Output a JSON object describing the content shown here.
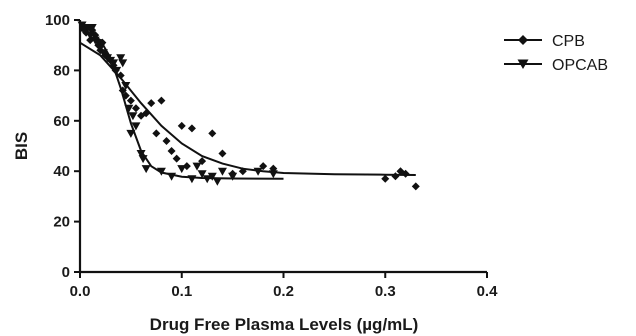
{
  "chart_data": {
    "type": "scatter",
    "xlabel": "Drug Free Plasma Levels (µg/mL)",
    "ylabel": "BIS",
    "xlim": [
      0.0,
      0.4
    ],
    "ylim": [
      0,
      100
    ],
    "x_ticks": [
      "0.0",
      "0.1",
      "0.2",
      "0.3",
      "0.4"
    ],
    "y_ticks": [
      "0",
      "20",
      "40",
      "60",
      "80",
      "100"
    ],
    "grid": false,
    "legend_position": "top-right",
    "series": [
      {
        "name": "CPB",
        "marker": "diamond",
        "color": "#111111",
        "points": [
          [
            0.003,
            97
          ],
          [
            0.006,
            95
          ],
          [
            0.01,
            92
          ],
          [
            0.012,
            96
          ],
          [
            0.015,
            94
          ],
          [
            0.018,
            90
          ],
          [
            0.02,
            88
          ],
          [
            0.022,
            91
          ],
          [
            0.025,
            86
          ],
          [
            0.03,
            84
          ],
          [
            0.033,
            82
          ],
          [
            0.035,
            80
          ],
          [
            0.04,
            78
          ],
          [
            0.042,
            72
          ],
          [
            0.045,
            70
          ],
          [
            0.05,
            68
          ],
          [
            0.055,
            65
          ],
          [
            0.06,
            62
          ],
          [
            0.065,
            63
          ],
          [
            0.07,
            67
          ],
          [
            0.075,
            55
          ],
          [
            0.08,
            68
          ],
          [
            0.085,
            52
          ],
          [
            0.09,
            48
          ],
          [
            0.095,
            45
          ],
          [
            0.1,
            58
          ],
          [
            0.105,
            42
          ],
          [
            0.11,
            57
          ],
          [
            0.12,
            44
          ],
          [
            0.13,
            55
          ],
          [
            0.14,
            47
          ],
          [
            0.15,
            39
          ],
          [
            0.16,
            40
          ],
          [
            0.18,
            42
          ],
          [
            0.19,
            41
          ],
          [
            0.3,
            37
          ],
          [
            0.31,
            38
          ],
          [
            0.315,
            40
          ],
          [
            0.32,
            39
          ],
          [
            0.33,
            34
          ]
        ],
        "fit": [
          [
            0.0,
            91
          ],
          [
            0.02,
            86
          ],
          [
            0.04,
            77
          ],
          [
            0.06,
            67
          ],
          [
            0.08,
            58
          ],
          [
            0.1,
            51
          ],
          [
            0.12,
            46
          ],
          [
            0.14,
            43
          ],
          [
            0.16,
            41
          ],
          [
            0.18,
            40
          ],
          [
            0.2,
            39.3
          ],
          [
            0.25,
            38.8
          ],
          [
            0.3,
            38.6
          ],
          [
            0.33,
            38.5
          ]
        ]
      },
      {
        "name": "OPCAB",
        "marker": "triangle-down",
        "color": "#111111",
        "points": [
          [
            0.002,
            98
          ],
          [
            0.004,
            96
          ],
          [
            0.008,
            97
          ],
          [
            0.01,
            94
          ],
          [
            0.012,
            97
          ],
          [
            0.015,
            92
          ],
          [
            0.018,
            91
          ],
          [
            0.02,
            89
          ],
          [
            0.023,
            87
          ],
          [
            0.027,
            85
          ],
          [
            0.03,
            84
          ],
          [
            0.033,
            83
          ],
          [
            0.036,
            80
          ],
          [
            0.04,
            85
          ],
          [
            0.042,
            83
          ],
          [
            0.045,
            74
          ],
          [
            0.048,
            65
          ],
          [
            0.05,
            55
          ],
          [
            0.052,
            62
          ],
          [
            0.055,
            58
          ],
          [
            0.06,
            47
          ],
          [
            0.062,
            45
          ],
          [
            0.065,
            41
          ],
          [
            0.08,
            40
          ],
          [
            0.09,
            38
          ],
          [
            0.1,
            41
          ],
          [
            0.11,
            37
          ],
          [
            0.115,
            42
          ],
          [
            0.12,
            39
          ],
          [
            0.125,
            37
          ],
          [
            0.13,
            38
          ],
          [
            0.135,
            36
          ],
          [
            0.14,
            40
          ],
          [
            0.15,
            38
          ],
          [
            0.175,
            40
          ],
          [
            0.19,
            39
          ]
        ],
        "fit": [
          [
            0.0,
            96
          ],
          [
            0.01,
            95
          ],
          [
            0.02,
            92
          ],
          [
            0.03,
            85
          ],
          [
            0.04,
            73
          ],
          [
            0.05,
            59
          ],
          [
            0.06,
            48
          ],
          [
            0.07,
            42
          ],
          [
            0.08,
            39.5
          ],
          [
            0.1,
            37.8
          ],
          [
            0.12,
            37.3
          ],
          [
            0.15,
            37.1
          ],
          [
            0.2,
            37
          ]
        ]
      }
    ]
  }
}
